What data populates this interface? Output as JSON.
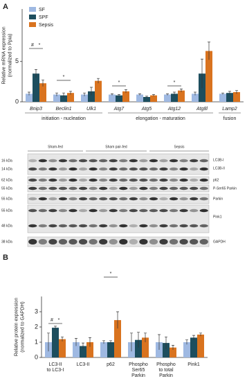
{
  "chart_data": [
    {
      "type": "bar",
      "panel": "A",
      "ylabel": [
        "Relative mRNA expression",
        "(normalized to Ppia)"
      ],
      "categories": [
        "Bnip3",
        "Beclin1",
        "Ulk1",
        "Atg7",
        "Atg5",
        "Atg12",
        "Atg8l",
        "Lamp2"
      ],
      "groups": [
        "initiation - nucleation",
        "elongation - maturation",
        "fusion"
      ],
      "series": [
        {
          "name": "SF",
          "color": "#9fb9e2",
          "values": [
            1.0,
            0.9,
            0.9,
            0.9,
            0.9,
            0.9,
            1.0,
            1.0
          ],
          "errors": [
            0.2,
            0.2,
            0.2,
            0.1,
            0.1,
            0.1,
            0.2,
            0.1
          ]
        },
        {
          "name": "SPF",
          "color": "#1d4e5e",
          "values": [
            3.5,
            0.8,
            1.3,
            0.8,
            0.6,
            1.0,
            3.5,
            1.1
          ],
          "errors": [
            0.5,
            0.3,
            0.5,
            0.1,
            0.1,
            0.2,
            1.8,
            0.2
          ]
        },
        {
          "name": "Sepsis",
          "color": "#d9731f",
          "values": [
            2.3,
            1.1,
            2.6,
            1.3,
            0.8,
            1.4,
            6.3,
            1.2
          ],
          "errors": [
            0.4,
            0.2,
            0.3,
            0.2,
            0.1,
            0.2,
            1.1,
            0.2
          ]
        }
      ],
      "annotations": [
        "#",
        "*",
        "*",
        "*",
        "*"
      ],
      "ylim": [
        0,
        11.5
      ],
      "yticks": [
        0,
        5
      ],
      "legend": "top-left"
    },
    {
      "type": "bar",
      "panel": "B",
      "ylabel": [
        "Relative protein expression",
        "(normalized to GAPDH)"
      ],
      "categories": [
        [
          "LC3-II",
          "to LC3-I"
        ],
        [
          "LC3-II"
        ],
        [
          "p62"
        ],
        [
          "Phospho",
          "Ser65",
          "Parkin"
        ],
        [
          "Phospho",
          "to total",
          "Parkin"
        ],
        [
          "Pink1"
        ]
      ],
      "series": [
        {
          "name": "SF",
          "color": "#9fb9e2",
          "values": [
            1.0,
            1.0,
            1.0,
            1.0,
            1.0,
            1.0
          ],
          "errors": [
            0.6,
            0.25,
            0.1,
            0.6,
            0.5,
            0.15
          ]
        },
        {
          "name": "SPF",
          "color": "#1d4e5e",
          "values": [
            1.95,
            0.75,
            1.0,
            1.15,
            0.95,
            1.3
          ],
          "errors": [
            0.1,
            0.2,
            0.1,
            0.5,
            0.4,
            0.15
          ]
        },
        {
          "name": "Sepsis",
          "color": "#d9731f",
          "values": [
            1.2,
            1.0,
            2.45,
            1.3,
            0.65,
            1.5
          ],
          "errors": [
            0.15,
            0.3,
            0.55,
            0.3,
            0.15,
            0.1
          ]
        }
      ],
      "annotations": [
        "#",
        "*",
        "*"
      ],
      "ylim": [
        0,
        4
      ],
      "yticks": [
        0,
        1,
        2,
        3
      ]
    }
  ],
  "blot": {
    "groups": [
      "Sham-fed",
      "Sham pair-fed",
      "Sepsis"
    ],
    "kda": [
      "16 kDa",
      "14 kDa",
      "62 kDa",
      "55 kDa",
      "55 kDa",
      "55 kDa",
      "48 kDa",
      "38 kDa"
    ],
    "proteins": [
      "LC3B-I",
      "LC3B-II",
      "p62",
      "P-Ser65 Parkin",
      "Parkin",
      "Pink1",
      "GAPDH"
    ]
  }
}
